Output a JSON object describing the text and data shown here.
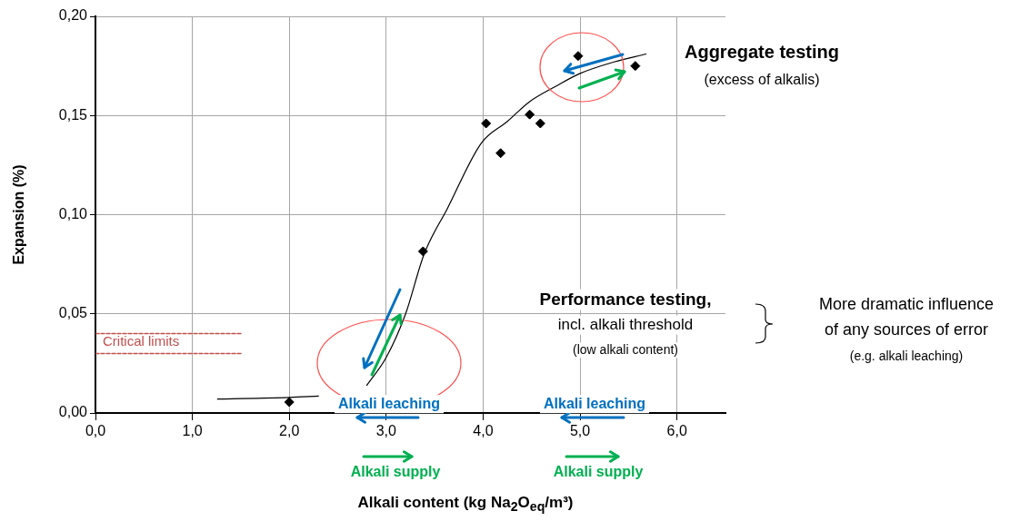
{
  "chart_data": {
    "type": "scatter",
    "xlabel": "Alkali content (kg Na$_{2}$O$_{eq}$/m³)",
    "ylabel": "Expansion (%)",
    "xlim": [
      0,
      6.5
    ],
    "xticks": [
      {
        "value": 0,
        "label": "0,0"
      },
      {
        "value": 1,
        "label": "1,0"
      },
      {
        "value": 2,
        "label": "2,0"
      },
      {
        "value": 3,
        "label": "3,0"
      },
      {
        "value": 4,
        "label": "4,0"
      },
      {
        "value": 5,
        "label": "5,0"
      },
      {
        "value": 6,
        "label": "6,0"
      }
    ],
    "ylim": [
      0,
      0.2
    ],
    "yticks": [
      {
        "value": 0,
        "label": "0,00"
      },
      {
        "value": 0.05,
        "label": "0,05"
      },
      {
        "value": 0.1,
        "label": "0,10"
      },
      {
        "value": 0.15,
        "label": "0,15"
      },
      {
        "value": 0.2,
        "label": "0,20"
      }
    ],
    "grid": true,
    "series": [
      {
        "color": "#000000",
        "marker": "diamond",
        "x": [
          2.0,
          3.38,
          4.03,
          4.18,
          4.48,
          4.59,
          4.98,
          5.57
        ],
        "values": [
          0.0055,
          0.0815,
          0.146,
          0.131,
          0.1505,
          0.146,
          0.18,
          0.175
        ]
      },
      {
        "type": "line",
        "color": "#000000",
        "marker": "none",
        "line_style": "solid",
        "x": [
          1.26,
          2.0,
          2.3,
          2.55,
          2.8,
          3.0,
          3.2,
          3.39,
          3.63,
          3.98,
          4.25,
          4.48,
          4.76,
          4.99,
          5.35,
          5.68
        ],
        "values": [
          0.007,
          0.0078,
          0.0085,
          null,
          0.014,
          0.028,
          0.05,
          0.08,
          0.103,
          0.136,
          0.147,
          0.157,
          0.165,
          0.171,
          0.177,
          0.181
        ]
      },
      {
        "type": "line",
        "name": "Critical limits",
        "color": "#c0504d",
        "marker": "none",
        "line_style": "dashed",
        "x": [
          0,
          1.5
        ],
        "values": [
          0.04,
          0.04
        ]
      },
      {
        "type": "line",
        "color": "#c0504d",
        "marker": "none",
        "line_style": "dashed",
        "x": [
          0,
          1.5
        ],
        "values": [
          0.03,
          0.03
        ]
      }
    ],
    "annotations": [
      "Aggregate testing",
      "(excess of alkalis)",
      "Performance testing,",
      "incl. alkali threshold",
      "(low alkali content)",
      "More dramatic influence",
      "of any sources of error",
      "(e.g. alkali leaching)",
      "Alkali leaching",
      "Alkali supply",
      "Alkali leaching",
      "Alkali supply"
    ]
  }
}
